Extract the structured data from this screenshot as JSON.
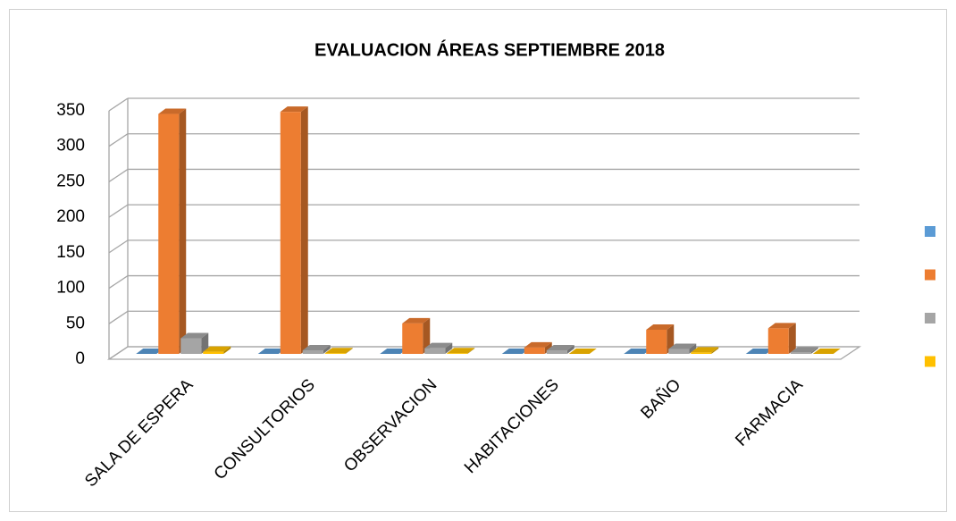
{
  "chart_data": {
    "type": "bar3d",
    "title": "EVALUACION ÁREAS SEPTIEMBRE 2018",
    "categories": [
      "SALA DE ESPERA",
      "CONSULTORIOS",
      "OBSERVACION",
      "HABITACIONES",
      "BAÑO",
      "FARMACIA"
    ],
    "series": [
      {
        "color": "#5b9bd5",
        "values": [
          0,
          0,
          0,
          0,
          0,
          0
        ]
      },
      {
        "color": "#ed7d31",
        "values": [
          338,
          341,
          43,
          9,
          34,
          36
        ]
      },
      {
        "color": "#a5a5a5",
        "values": [
          22,
          5,
          8,
          5,
          7,
          2
        ]
      },
      {
        "color": "#ffc000",
        "values": [
          3,
          1,
          1,
          0,
          2,
          0
        ]
      }
    ],
    "ylim": [
      0,
      350
    ],
    "yticks": [
      0,
      50,
      100,
      150,
      200,
      250,
      300,
      350
    ],
    "grid": true,
    "legend": "right"
  }
}
